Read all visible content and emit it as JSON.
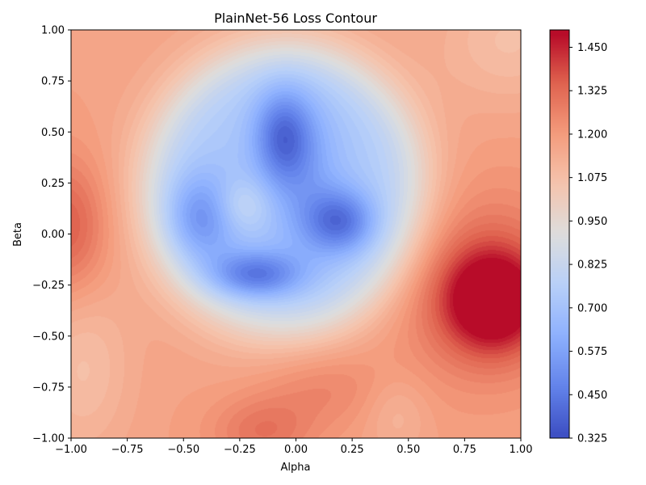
{
  "chart_data": {
    "type": "heatmap",
    "subtype": "filled-contour",
    "title": "PlainNet-56 Loss Contour",
    "xlabel": "Alpha",
    "ylabel": "Beta",
    "xlim": [
      -1.0,
      1.0
    ],
    "ylim": [
      -1.0,
      1.0
    ],
    "x_ticks": [
      "−1.00",
      "−0.75",
      "−0.50",
      "−0.25",
      "0.00",
      "0.25",
      "0.50",
      "0.75",
      "1.00"
    ],
    "y_ticks": [
      "1.00",
      "0.75",
      "0.50",
      "0.25",
      "0.00",
      "−0.25",
      "−0.50",
      "−0.75",
      "−1.00"
    ],
    "colormap": "coolwarm",
    "colorbar": {
      "range": [
        0.325,
        1.5
      ],
      "ticks": [
        "1.450",
        "1.325",
        "1.200",
        "1.075",
        "0.950",
        "0.825",
        "0.700",
        "0.575",
        "0.450",
        "0.325"
      ],
      "placement": "right"
    },
    "grid": false,
    "features": [
      {
        "kind": "minimum",
        "x": -0.08,
        "y": 0.52,
        "value": 0.35
      },
      {
        "kind": "minimum",
        "x": 0.22,
        "y": 0.05,
        "value": 0.36
      },
      {
        "kind": "minimum",
        "x": -0.17,
        "y": -0.22,
        "value": 0.36
      },
      {
        "kind": "minimum",
        "x": -0.42,
        "y": 0.1,
        "value": 0.42
      },
      {
        "kind": "maximum",
        "x": 0.88,
        "y": -0.32,
        "value": 1.5
      },
      {
        "kind": "maximum",
        "x": -1.0,
        "y": 0.05,
        "value": 1.33
      },
      {
        "kind": "maximum",
        "x": -0.15,
        "y": -0.95,
        "value": 1.32
      }
    ]
  }
}
